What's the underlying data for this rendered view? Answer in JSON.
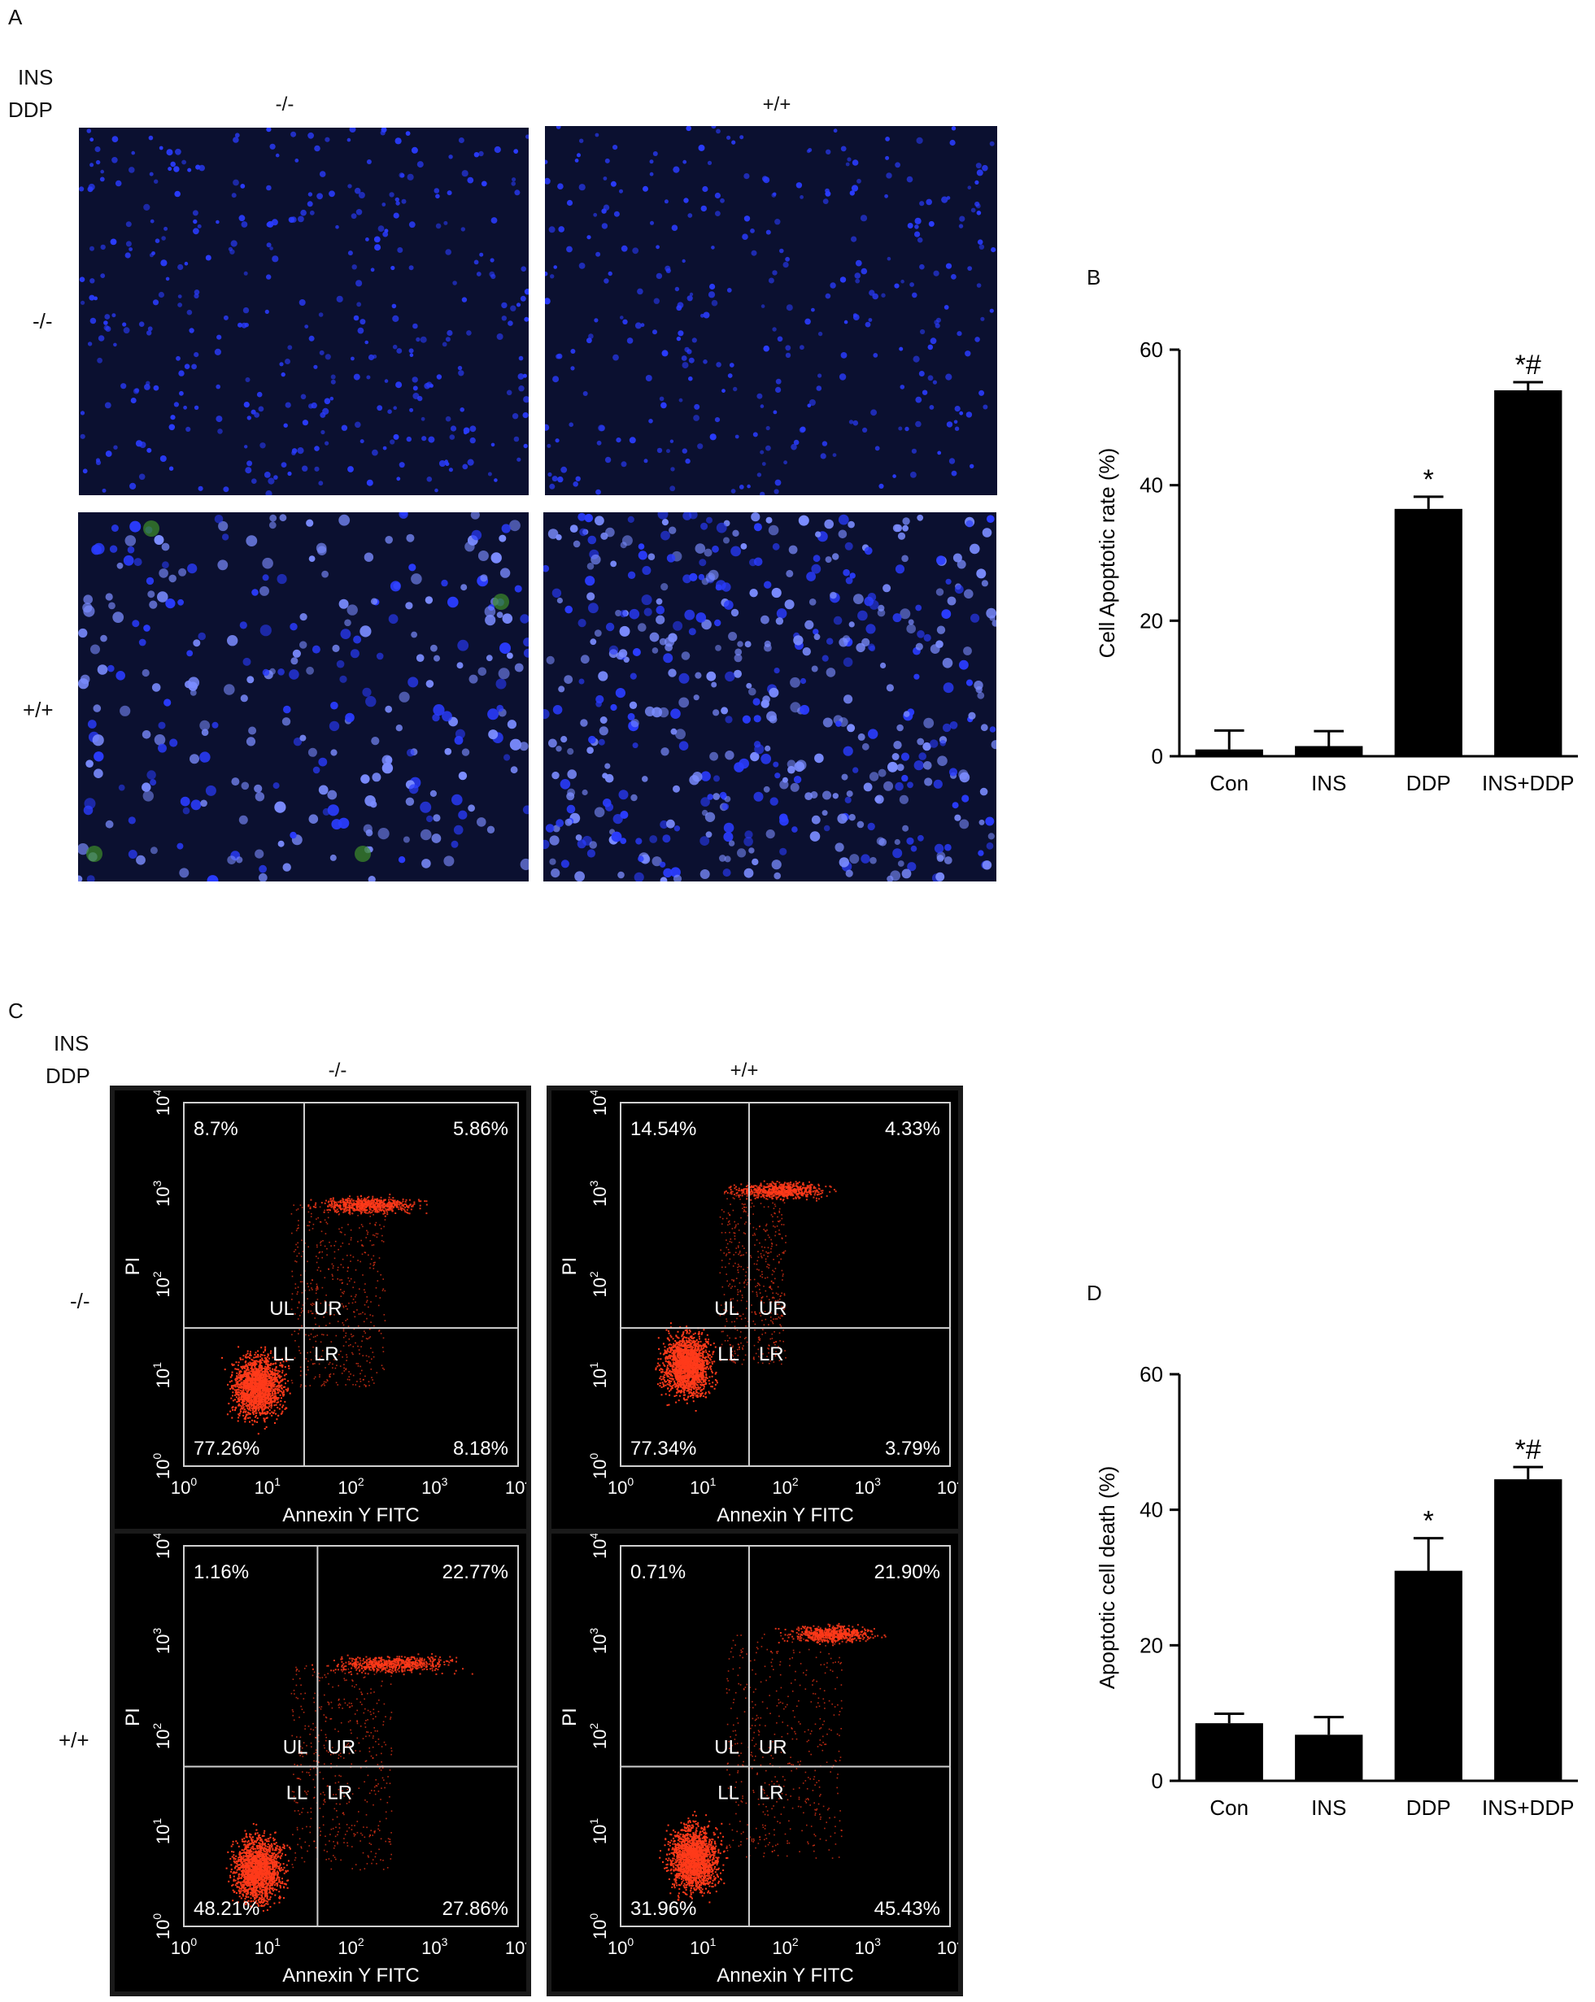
{
  "panel_labels": {
    "a": "A",
    "b": "B",
    "c": "C",
    "d": "D"
  },
  "panel_a": {
    "row_factor": "INS",
    "col_factor": "DDP",
    "col_labels": [
      "-/-",
      "+/+"
    ],
    "row_labels": [
      "-/-",
      "+/+"
    ],
    "colors": {
      "background": "#0b1030",
      "nucleus": "#2a3cff",
      "apoptotic": "#7b8cff",
      "fitc": "#3d8f2a"
    }
  },
  "panel_c": {
    "row_factor": "INS",
    "col_factor": "DDP",
    "col_labels": [
      "-/-",
      "+/+"
    ],
    "row_labels": [
      "-/-",
      "+/+"
    ],
    "x_axis_label": "Annexin Y FITC",
    "y_axis_label": "PI",
    "tick_labels": [
      "10",
      "10",
      "10",
      "10",
      "10"
    ],
    "tick_exponents": [
      "0",
      "1",
      "2",
      "3",
      "4"
    ],
    "quadrant_names": {
      "ul": "UL",
      "ur": "UR",
      "ll": "LL",
      "lr": "LR"
    },
    "plots": [
      {
        "ul": "8.7%",
        "ur": "5.86%",
        "ll": "77.26%",
        "lr": "8.18%"
      },
      {
        "ul": "14.54%",
        "ur": "4.33%",
        "ll": "77.34%",
        "lr": "3.79%"
      },
      {
        "ul": "1.16%",
        "ur": "22.77%",
        "ll": "48.21%",
        "lr": "27.86%"
      },
      {
        "ul": "0.71%",
        "ur": "21.90%",
        "ll": "31.96%",
        "lr": "45.43%"
      }
    ],
    "colors": {
      "dots": "#ff3a1a",
      "gate": "#d0d0d0"
    }
  },
  "chart_data": [
    {
      "type": "bar",
      "panel": "B",
      "categories": [
        "Con",
        "INS",
        "DDP",
        "INS+DDP"
      ],
      "values": [
        1,
        1.5,
        36.5,
        54
      ],
      "errors": [
        2.8,
        2.2,
        1.8,
        1.2
      ],
      "annotations": [
        "",
        "",
        "*",
        "*#"
      ],
      "ylabel": "Cell Apoptotic rate (%)",
      "ylim": [
        0,
        60
      ],
      "yticks": [
        "0",
        "20",
        "40",
        "60"
      ],
      "bar_color": "#000000"
    },
    {
      "type": "bar",
      "panel": "D",
      "categories": [
        "Con",
        "INS",
        "DDP",
        "INS+DDP"
      ],
      "values": [
        8.5,
        6.8,
        31,
        44.5
      ],
      "errors": [
        1.4,
        2.6,
        4.8,
        1.8
      ],
      "annotations": [
        "",
        "",
        "*",
        "*#"
      ],
      "ylabel": "Apoptotic cell death (%)",
      "ylim": [
        0,
        60
      ],
      "yticks": [
        "0",
        "20",
        "40",
        "60"
      ],
      "bar_color": "#000000"
    }
  ]
}
